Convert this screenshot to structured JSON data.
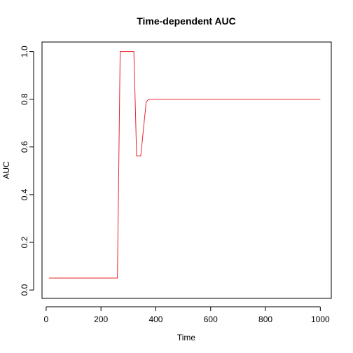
{
  "chart_data": {
    "type": "line",
    "title": "Time-dependent AUC",
    "xlabel": "Time",
    "ylabel": "AUC",
    "xlim": [
      -15,
      1040
    ],
    "ylim": [
      -0.035,
      1.04
    ],
    "x_ticks": [
      0,
      200,
      400,
      600,
      800,
      1000
    ],
    "x_tick_labels": [
      "0",
      "200",
      "400",
      "600",
      "800",
      "1000"
    ],
    "y_ticks": [
      0.0,
      0.2,
      0.4,
      0.6,
      0.8,
      1.0
    ],
    "y_tick_labels": [
      "0.0",
      "0.2",
      "0.4",
      "0.6",
      "0.8",
      "1.0"
    ],
    "grid": false,
    "series": [
      {
        "color": "#e8262b",
        "x": [
          10,
          260,
          270,
          320,
          330,
          345,
          365,
          375,
          1000
        ],
        "y": [
          0.05,
          0.05,
          1.0,
          1.0,
          0.562,
          0.562,
          0.79,
          0.8,
          0.8
        ]
      }
    ]
  }
}
